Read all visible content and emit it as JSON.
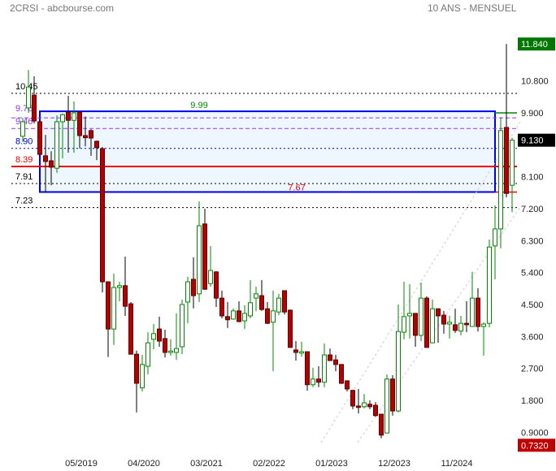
{
  "header": {
    "title": "2CRSI - abcbourse.com",
    "period": "10 ANS - MENSUEL"
  },
  "colors": {
    "up": "#008800",
    "down": "#b30000",
    "high_box": "#007700",
    "low_box": "#c00000",
    "last_box": "#000000",
    "zone": "#0000ee",
    "zone_fill": "#eef6ff"
  },
  "chart_data": {
    "type": "candlestick",
    "title": "",
    "ylim": [
      0.6,
      12.2
    ],
    "grid": false,
    "y_ticks": [
      "10.800",
      "9.900",
      "8.100",
      "7.200",
      "6.300",
      "5.400",
      "4.500",
      "3.600",
      "2.700",
      "1.800",
      "0.9000"
    ],
    "x_ticks": [
      "05/2019",
      "04/2020",
      "03/2021",
      "02/2022",
      "01/2023",
      "12/2023",
      "11/2024"
    ],
    "markers": {
      "high": "11.840",
      "last": "9.130",
      "low": "0.7320"
    },
    "levels": [
      {
        "value": 10.45,
        "label": "10.45",
        "style": "dotted",
        "color": "#000000"
      },
      {
        "value": 9.76,
        "label": "9.76",
        "style": "dashed",
        "color": "#9933ff"
      },
      {
        "value": 9.46,
        "label": "9.46",
        "style": "dashed",
        "color": "#9933ff"
      },
      {
        "value": 8.9,
        "label": "8.90",
        "style": "dotted",
        "color": "#0000cc"
      },
      {
        "value": 8.39,
        "label": "8.39",
        "style": "solid",
        "color": "#ee0000"
      },
      {
        "value": 7.91,
        "label": "7.91",
        "style": "dotted",
        "color": "#000000"
      },
      {
        "value": 7.23,
        "label": "7.23",
        "style": "dotted",
        "color": "#000000"
      }
    ],
    "zone": {
      "top": 9.99,
      "bottom": 7.67,
      "top_label": "9.99",
      "bottom_label": "7.67",
      "from": "10/2018",
      "to": "06/2025"
    },
    "candles": [
      [
        "07/2018",
        9.24,
        9.76,
        9.08,
        9.65
      ],
      [
        "08/2018",
        10.04,
        11.11,
        9.9,
        10.63
      ],
      [
        "09/2018",
        10.4,
        10.93,
        9.6,
        9.67
      ],
      [
        "10/2018",
        9.65,
        9.66,
        8.7,
        8.73
      ],
      [
        "11/2018",
        8.69,
        9.28,
        7.66,
        8.53
      ],
      [
        "12/2018",
        8.55,
        8.82,
        7.86,
        8.37
      ],
      [
        "01/2019",
        8.34,
        9.83,
        8.21,
        9.65
      ],
      [
        "02/2019",
        9.65,
        9.88,
        8.62,
        9.85
      ],
      [
        "03/2019",
        9.92,
        10.38,
        8.78,
        9.69
      ],
      [
        "04/2019",
        9.69,
        10.22,
        8.78,
        9.9
      ],
      [
        "05/2019",
        9.92,
        9.93,
        8.9,
        9.26
      ],
      [
        "06/2019",
        9.26,
        9.8,
        8.96,
        9.2
      ],
      [
        "07/2019",
        9.4,
        9.44,
        8.69,
        9.19
      ],
      [
        "08/2019",
        9.1,
        9.12,
        8.57,
        8.92
      ],
      [
        "09/2019",
        8.89,
        8.94,
        4.84,
        5.14
      ],
      [
        "10/2019",
        5.14,
        5.14,
        3.02,
        3.81
      ],
      [
        "11/2019",
        3.81,
        5.37,
        3.36,
        4.98
      ],
      [
        "12/2019",
        4.98,
        5.14,
        4.59,
        5.03
      ],
      [
        "01/2020",
        5.03,
        5.85,
        4.18,
        4.45
      ],
      [
        "02/2020",
        4.52,
        4.57,
        3.1,
        3.1
      ],
      [
        "03/2020",
        3.1,
        3.2,
        1.46,
        2.28
      ],
      [
        "04/2020",
        2.15,
        3.08,
        2.05,
        2.81
      ],
      [
        "05/2020",
        2.76,
        3.72,
        2.53,
        3.42
      ],
      [
        "06/2020",
        3.52,
        3.95,
        3.24,
        3.68
      ],
      [
        "07/2020",
        3.81,
        4.16,
        3.31,
        3.47
      ],
      [
        "08/2020",
        3.54,
        3.79,
        3.01,
        3.15
      ],
      [
        "09/2020",
        3.15,
        3.52,
        3.06,
        3.19
      ],
      [
        "10/2020",
        3.15,
        4.25,
        2.94,
        3.26
      ],
      [
        "11/2020",
        3.31,
        4.64,
        3.1,
        4.5
      ],
      [
        "12/2020",
        4.57,
        5.28,
        3.97,
        5.14
      ],
      [
        "01/2021",
        5.21,
        5.83,
        4.39,
        4.75
      ],
      [
        "02/2021",
        4.8,
        7.41,
        4.57,
        6.72
      ],
      [
        "03/2021",
        6.77,
        7.2,
        4.91,
        4.93
      ],
      [
        "04/2021",
        5.09,
        6.15,
        5.0,
        5.46
      ],
      [
        "05/2021",
        5.42,
        5.44,
        4.43,
        4.68
      ],
      [
        "06/2021",
        4.68,
        4.89,
        4.11,
        4.18
      ],
      [
        "07/2021",
        4.16,
        4.57,
        3.84,
        4.07
      ],
      [
        "08/2021",
        4.09,
        4.39,
        4.07,
        4.32
      ],
      [
        "09/2021",
        4.32,
        4.59,
        4.0,
        4.02
      ],
      [
        "10/2021",
        4.04,
        4.48,
        3.81,
        4.25
      ],
      [
        "11/2021",
        4.18,
        5.19,
        4.11,
        4.55
      ],
      [
        "12/2021",
        4.68,
        5.0,
        4.32,
        4.8
      ],
      [
        "01/2022",
        4.75,
        5.19,
        4.32,
        4.36
      ],
      [
        "02/2022",
        4.38,
        4.57,
        3.95,
        3.97
      ],
      [
        "03/2022",
        4.0,
        4.89,
        2.62,
        4.32
      ],
      [
        "04/2022",
        4.29,
        4.8,
        4.2,
        4.68
      ],
      [
        "05/2022",
        4.89,
        4.89,
        4.22,
        4.29
      ],
      [
        "06/2022",
        4.34,
        4.36,
        3.29,
        3.29
      ],
      [
        "07/2022",
        3.22,
        3.47,
        2.92,
        3.15
      ],
      [
        "08/2022",
        3.13,
        3.45,
        3.03,
        3.17
      ],
      [
        "09/2022",
        3.17,
        3.17,
        2.07,
        2.24
      ],
      [
        "10/2022",
        2.24,
        2.72,
        2.17,
        2.4
      ],
      [
        "11/2022",
        2.4,
        2.76,
        2.17,
        2.31
      ],
      [
        "12/2022",
        2.31,
        3.4,
        2.17,
        3.08
      ],
      [
        "01/2023",
        3.08,
        3.26,
        2.92,
        2.92
      ],
      [
        "02/2023",
        2.94,
        3.08,
        2.62,
        2.81
      ],
      [
        "03/2023",
        2.81,
        2.81,
        2.26,
        2.28
      ],
      [
        "04/2023",
        2.35,
        2.35,
        2.05,
        2.12
      ],
      [
        "05/2023",
        2.08,
        2.1,
        1.55,
        1.64
      ],
      [
        "06/2023",
        1.64,
        2.12,
        1.43,
        1.6
      ],
      [
        "07/2023",
        1.62,
        1.98,
        1.57,
        1.73
      ],
      [
        "08/2023",
        1.69,
        1.8,
        1.55,
        1.62
      ],
      [
        "09/2023",
        1.66,
        1.75,
        1.34,
        1.37
      ],
      [
        "10/2023",
        1.41,
        1.41,
        0.732,
        0.82
      ],
      [
        "11/2023",
        0.88,
        2.53,
        0.88,
        2.4
      ],
      [
        "12/2023",
        2.4,
        2.51,
        1.37,
        1.5
      ],
      [
        "01/2024",
        1.5,
        4.5,
        1.46,
        3.74
      ],
      [
        "02/2024",
        3.72,
        5.14,
        3.52,
        4.16
      ],
      [
        "03/2024",
        4.18,
        5.07,
        3.54,
        4.25
      ],
      [
        "04/2024",
        4.25,
        4.25,
        3.31,
        3.63
      ],
      [
        "05/2024",
        3.63,
        5.12,
        3.47,
        4.68
      ],
      [
        "06/2024",
        4.68,
        4.73,
        3.29,
        3.29
      ],
      [
        "07/2024",
        3.42,
        4.64,
        3.42,
        4.38
      ],
      [
        "08/2024",
        4.38,
        4.38,
        3.42,
        4.18
      ],
      [
        "09/2024",
        4.2,
        4.32,
        3.68,
        3.95
      ],
      [
        "10/2024",
        3.95,
        4.18,
        3.54,
        4.0
      ],
      [
        "11/2024",
        3.93,
        4.38,
        3.7,
        3.77
      ],
      [
        "12/2024",
        3.75,
        4.18,
        3.63,
        3.97
      ],
      [
        "01/2025",
        3.97,
        4.59,
        3.72,
        3.93
      ],
      [
        "02/2025",
        3.88,
        5.42,
        3.88,
        4.68
      ],
      [
        "03/2025",
        4.68,
        4.96,
        3.74,
        3.88
      ],
      [
        "04/2025",
        3.88,
        4.0,
        3.06,
        3.95
      ],
      [
        "05/2025",
        3.97,
        6.33,
        3.86,
        6.12
      ],
      [
        "06/2025",
        6.15,
        7.29,
        5.21,
        6.63
      ],
      [
        "07/2025",
        6.63,
        9.78,
        6.08,
        9.4
      ],
      [
        "08/2025",
        9.49,
        11.84,
        7.52,
        7.63
      ],
      [
        "09/2025",
        7.86,
        9.2,
        7.1,
        9.13
      ]
    ]
  }
}
